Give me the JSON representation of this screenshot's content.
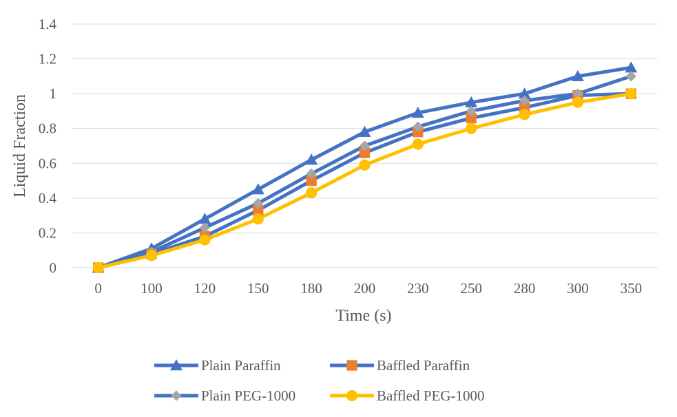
{
  "chart_data": {
    "type": "line",
    "title": "",
    "xlabel": "Time (s)",
    "ylabel": "Liquid Fraction",
    "categories": [
      "0",
      "100",
      "120",
      "150",
      "180",
      "200",
      "230",
      "250",
      "280",
      "300",
      "350"
    ],
    "ylim": [
      0,
      1.4
    ],
    "yticks": [
      "0",
      "0.2",
      "0.4",
      "0.6",
      "0.8",
      "1",
      "1.2",
      "1.4"
    ],
    "grid": true,
    "legend_position": "bottom",
    "series": [
      {
        "name": "Plain Paraffin",
        "color": "#4472c4",
        "marker": "triangle",
        "marker_color": "#4472c4",
        "values": [
          0,
          0.11,
          0.28,
          0.45,
          0.62,
          0.78,
          0.89,
          0.95,
          1.0,
          1.1,
          1.15
        ]
      },
      {
        "name": "Baffled Paraffin",
        "color": "#4472c4",
        "marker": "square",
        "marker_color": "#ed7d31",
        "values": [
          0,
          0.08,
          0.18,
          0.33,
          0.5,
          0.66,
          0.78,
          0.86,
          0.92,
          0.99,
          1.0
        ]
      },
      {
        "name": "Plain PEG-1000",
        "color": "#4472c4",
        "marker": "diamond",
        "marker_color": "#a5a5a5",
        "values": [
          0,
          0.09,
          0.23,
          0.37,
          0.54,
          0.7,
          0.81,
          0.9,
          0.96,
          1.0,
          1.1
        ]
      },
      {
        "name": "Baffled PEG-1000",
        "color": "#ffc000",
        "marker": "circle",
        "marker_color": "#ffc000",
        "values": [
          0,
          0.07,
          0.16,
          0.28,
          0.43,
          0.59,
          0.71,
          0.8,
          0.88,
          0.95,
          1.0
        ]
      }
    ]
  }
}
